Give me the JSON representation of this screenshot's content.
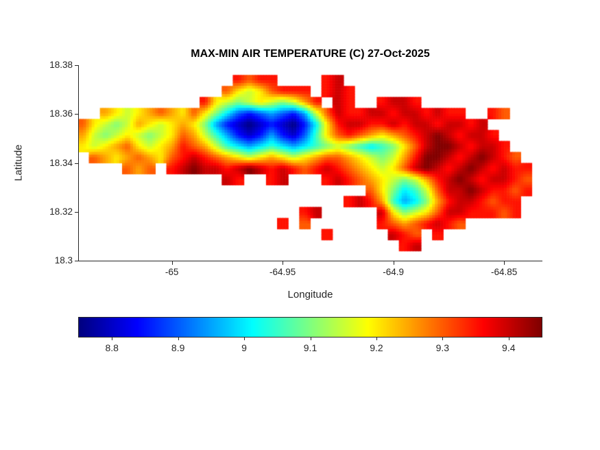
{
  "colors": {
    "background": "#ffffff",
    "axis": "#262626",
    "title_text": "#000000"
  },
  "chart_data": {
    "type": "heatmap",
    "title": "MAX-MIN AIR TEMPERATURE (C) 27-Oct-2025",
    "xlabel": "Longitude",
    "ylabel": "Latitude",
    "xlim": [
      -65.042,
      -64.833
    ],
    "ylim": [
      18.3,
      18.38
    ],
    "xticks": [
      -65,
      -64.95,
      -64.9,
      -64.85
    ],
    "xtick_labels": [
      "-65",
      "-64.95",
      "-64.9",
      "-64.85"
    ],
    "yticks": [
      18.3,
      18.32,
      18.34,
      18.36,
      18.38
    ],
    "ytick_labels": [
      "18.3",
      "18.32",
      "18.34",
      "18.36",
      "18.38"
    ],
    "colormap": "jet",
    "clim": [
      8.75,
      9.45
    ],
    "grid_lines": "off",
    "colorbar": {
      "orientation": "horizontal",
      "ticks": [
        8.8,
        8.9,
        9,
        9.1,
        9.2,
        9.3,
        9.4
      ],
      "tick_labels": [
        "8.8",
        "8.9",
        "9",
        "9.1",
        "9.2",
        "9.3",
        "9.4"
      ]
    },
    "grid": {
      "comment": "Temperature field over the island, row 0 = northernmost. Values encoded per cell: value = base + index(char)*step; '.' = no data (water).",
      "lon_min": -65.0425,
      "lon_max": -64.8325,
      "lat_min": 18.304,
      "lat_max": 18.376,
      "ncols": 42,
      "nrows": 16,
      "value_encoding": {
        "chars": "0123456789abcdef",
        "base": 8.75,
        "step": 0.05,
        "nan": "."
      },
      "rows": [
        "..............cbcc....cd..................",
        ".............b989bccc.cdc.................",
        "...........c98789878ac.dc..cddc...........",
        "..a989aba9b97532343248bdccddcddcdcc..cb...",
        "b9878a989a9742101210259cddccdcddcddcd.....",
        "a87898789ba864212421369bcba9abcdedcddc....",
        "989ab989acba865456545678765679bdeedcddc...",
        ".ba9aba9bcdcba989a989abba9878aceedcdedcb..",
        "....bab.cdeddcdedcdcbcdcba989bdedcdedcdcc.",
        ".............dc..cd...cdcba9878acdedcddcb.",
        "..........................b97568bddedccbc.",
        "........................cdca6457acddcbcc..",
        "....................cd.....d9789bddcccbc..",
        "..................c.b......cbabcdcb.......",
        "......................c.....dcb.c.........",
        ".............................cd..........."
      ]
    }
  }
}
